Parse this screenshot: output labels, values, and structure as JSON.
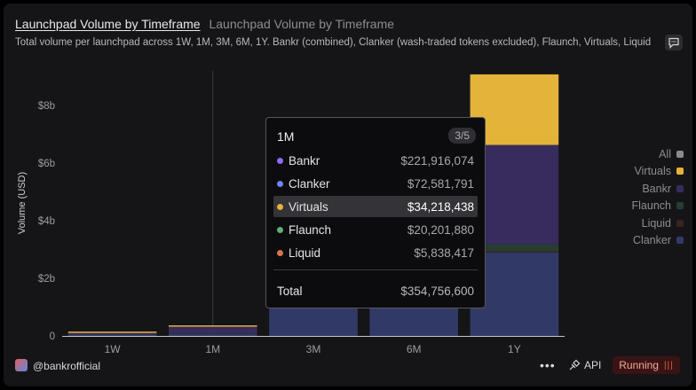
{
  "header": {
    "title": "Launchpad Volume by Timeframe",
    "title_secondary": "Launchpad Volume by Timeframe",
    "subtitle": "Total volume per launchpad across 1W, 1M, 3M, 6M, 1Y. Bankr (combined), Clanker (wash-traded tokens excluded), Flaunch, Virtuals, Liquid"
  },
  "chart_data": {
    "type": "bar",
    "stacked": true,
    "categories": [
      "1W",
      "1M",
      "3M",
      "6M",
      "1Y"
    ],
    "ylabel": "Volume (USD)",
    "yticks": [
      "0",
      "$2b",
      "$4b",
      "$6b",
      "$8b"
    ],
    "ylim": [
      0,
      9200000000
    ],
    "grid": false,
    "legend_position": "right",
    "series": [
      {
        "name": "Clanker",
        "color": "#313a66",
        "values": [
          40000000,
          72581791,
          1200000000,
          1500000000,
          2900000000
        ]
      },
      {
        "name": "Liquid",
        "color": "#3b231f",
        "values": [
          2000000,
          5838417,
          10000000,
          20000000,
          30000000
        ]
      },
      {
        "name": "Flaunch",
        "color": "#283d30",
        "values": [
          3000000,
          20201880,
          40000000,
          70000000,
          250000000
        ]
      },
      {
        "name": "Bankr",
        "color": "#372c5c",
        "values": [
          60000000,
          221916074,
          0,
          0,
          3450000000
        ]
      },
      {
        "name": "Virtuals",
        "color": "#e3b33a",
        "values": [
          5000000,
          34218438,
          0,
          0,
          2450000000
        ]
      }
    ]
  },
  "legend": {
    "all_label": "All",
    "all_color": "#8a8a90",
    "items": [
      {
        "label": "Virtuals",
        "color": "#e3b33a"
      },
      {
        "label": "Bankr",
        "color": "#372c5c"
      },
      {
        "label": "Flaunch",
        "color": "#283d30"
      },
      {
        "label": "Liquid",
        "color": "#3b231f"
      },
      {
        "label": "Clanker",
        "color": "#313a66"
      }
    ]
  },
  "tooltip": {
    "period": "1M",
    "position": "3/5",
    "rows": [
      {
        "name": "Bankr",
        "value": "$221,916,074",
        "color": "#8a6cf0",
        "highlighted": false
      },
      {
        "name": "Clanker",
        "value": "$72,581,791",
        "color": "#6a86f0",
        "highlighted": false
      },
      {
        "name": "Virtuals",
        "value": "$34,218,438",
        "color": "#e3b33a",
        "highlighted": true
      },
      {
        "name": "Flaunch",
        "value": "$20,201,880",
        "color": "#5fae78",
        "highlighted": false
      },
      {
        "name": "Liquid",
        "value": "$5,838,417",
        "color": "#d9734e",
        "highlighted": false
      }
    ],
    "total_label": "Total",
    "total_value": "$354,756,600"
  },
  "footer": {
    "handle": "@bankrofficial",
    "more_label": "•••",
    "api_label": "API",
    "status_label": "Running",
    "status_icon": "|||"
  }
}
